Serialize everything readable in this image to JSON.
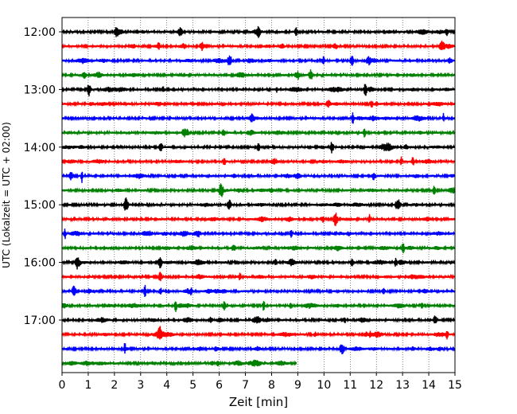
{
  "chart_data": {
    "type": "line",
    "title": "",
    "xlabel": "Zeit  [min]",
    "ylabel": "UTC (Lokalzeit = UTC + 02:00)",
    "xlim": [
      0,
      15
    ],
    "xticks": [
      0,
      1,
      2,
      3,
      4,
      5,
      6,
      7,
      8,
      9,
      10,
      11,
      12,
      13,
      14,
      15
    ],
    "grid": "vertical-dotted",
    "ytick_labels": [
      "12:00",
      "13:00",
      "14:00",
      "15:00",
      "16:00",
      "17:00"
    ],
    "trace_minutes": 15,
    "colors": [
      "#000000",
      "#ff0000",
      "#0000ff",
      "#008000"
    ],
    "traces": [
      {
        "start": "12:00",
        "end_min": 15
      },
      {
        "start": "12:15",
        "end_min": 15
      },
      {
        "start": "12:30",
        "end_min": 15
      },
      {
        "start": "12:45",
        "end_min": 15
      },
      {
        "start": "13:00",
        "end_min": 15
      },
      {
        "start": "13:15",
        "end_min": 15
      },
      {
        "start": "13:30",
        "end_min": 15
      },
      {
        "start": "13:45",
        "end_min": 15
      },
      {
        "start": "14:00",
        "end_min": 15
      },
      {
        "start": "14:15",
        "end_min": 15
      },
      {
        "start": "14:30",
        "end_min": 15
      },
      {
        "start": "14:45",
        "end_min": 15
      },
      {
        "start": "15:00",
        "end_min": 15
      },
      {
        "start": "15:15",
        "end_min": 15
      },
      {
        "start": "15:30",
        "end_min": 15
      },
      {
        "start": "15:45",
        "end_min": 15
      },
      {
        "start": "16:00",
        "end_min": 15
      },
      {
        "start": "16:15",
        "end_min": 15
      },
      {
        "start": "16:30",
        "end_min": 15
      },
      {
        "start": "16:45",
        "end_min": 15
      },
      {
        "start": "17:00",
        "end_min": 15
      },
      {
        "start": "17:15",
        "end_min": 15
      },
      {
        "start": "17:30",
        "end_min": 15
      },
      {
        "start": "17:45",
        "end_min": 8.95
      }
    ]
  }
}
